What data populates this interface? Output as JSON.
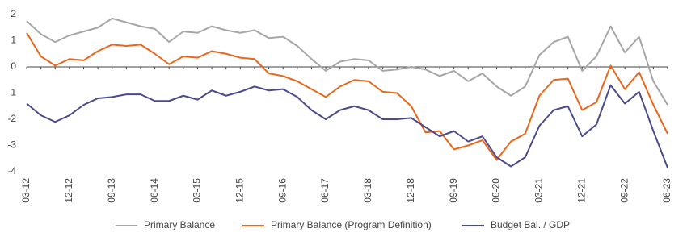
{
  "chart_data": {
    "type": "line",
    "categories": [
      "03-12",
      null,
      null,
      "12-12",
      null,
      null,
      "09-13",
      null,
      null,
      "06-14",
      null,
      null,
      "03-15",
      null,
      null,
      "12-15",
      null,
      null,
      "09-16",
      null,
      null,
      "06-17",
      null,
      null,
      "03-18",
      null,
      null,
      "12-18",
      null,
      null,
      "09-19",
      null,
      null,
      "06-20",
      null,
      null,
      "03-21",
      null,
      null,
      "12-21",
      null,
      null,
      "09-22",
      null,
      null,
      "06-23"
    ],
    "series": [
      {
        "name": "Primary Balance",
        "color": "#a6a6a6",
        "values": [
          1.75,
          1.25,
          0.95,
          1.2,
          1.35,
          1.5,
          1.85,
          1.7,
          1.55,
          1.45,
          0.95,
          1.35,
          1.3,
          1.55,
          1.4,
          1.3,
          1.4,
          1.1,
          1.15,
          0.8,
          0.3,
          -0.15,
          0.2,
          0.3,
          0.25,
          -0.15,
          -0.1,
          0.0,
          -0.1,
          -0.35,
          -0.15,
          -0.55,
          -0.25,
          -0.75,
          -1.1,
          -0.75,
          0.45,
          0.95,
          1.15,
          -0.15,
          0.4,
          1.55,
          0.55,
          1.15,
          -0.55,
          -1.45
        ]
      },
      {
        "name": "Primary Balance (Program Definition)",
        "color": "#e8671b",
        "values": [
          1.3,
          0.4,
          0.05,
          0.3,
          0.25,
          0.6,
          0.85,
          0.8,
          0.85,
          0.5,
          0.1,
          0.4,
          0.35,
          0.6,
          0.5,
          0.35,
          0.3,
          -0.25,
          -0.35,
          -0.55,
          -0.85,
          -1.15,
          -0.75,
          -0.5,
          -0.55,
          -0.95,
          -1.0,
          -1.5,
          -2.5,
          -2.45,
          -3.15,
          -3.0,
          -2.8,
          -3.55,
          -2.85,
          -2.55,
          -1.1,
          -0.5,
          -0.45,
          -1.65,
          -1.35,
          0.05,
          -0.85,
          -0.2,
          -1.45,
          -2.55
        ]
      },
      {
        "name": "Budget Bal. / GDP",
        "color": "#4b4b8c",
        "values": [
          -1.4,
          -1.85,
          -2.1,
          -1.85,
          -1.45,
          -1.2,
          -1.15,
          -1.05,
          -1.05,
          -1.3,
          -1.3,
          -1.1,
          -1.25,
          -0.9,
          -1.1,
          -0.95,
          -0.75,
          -0.9,
          -0.85,
          -1.15,
          -1.65,
          -2.0,
          -1.65,
          -1.5,
          -1.65,
          -2.0,
          -2.0,
          -1.95,
          -2.3,
          -2.65,
          -2.45,
          -2.85,
          -2.65,
          -3.45,
          -3.8,
          -3.45,
          -2.25,
          -1.65,
          -1.5,
          -2.65,
          -2.2,
          -0.7,
          -1.4,
          -0.95,
          -2.45,
          -3.85
        ]
      }
    ],
    "ylim": [
      -4,
      2
    ],
    "yticks": [
      2,
      1,
      0,
      -1,
      -2,
      -3,
      -4
    ],
    "legend": "bottom"
  }
}
